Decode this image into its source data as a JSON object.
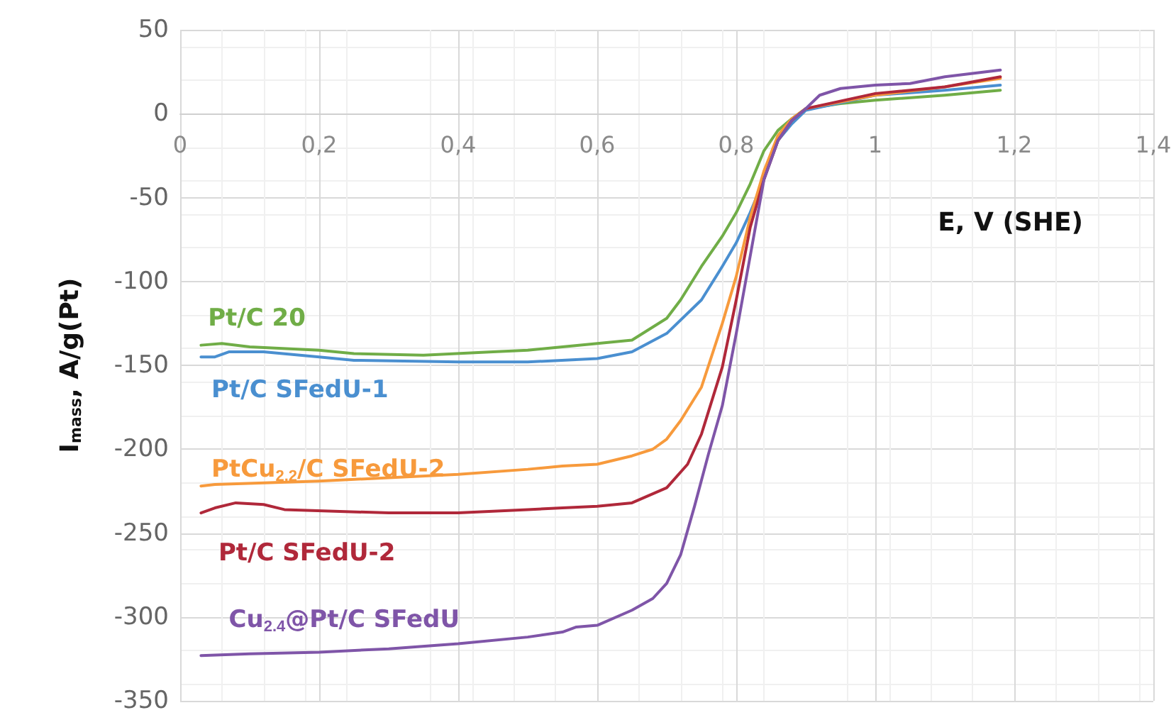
{
  "chart_data": {
    "type": "line",
    "xlabel": "E, V (SHE)",
    "ylabel": "I$_{mass}$, A/g(Pt)",
    "xlim": [
      0,
      1.4
    ],
    "xticks": [
      {
        "value": 0,
        "label": "0"
      },
      {
        "value": 0.2,
        "label": "0,2"
      },
      {
        "value": 0.4,
        "label": "0,4"
      },
      {
        "value": 0.6,
        "label": "0,6"
      },
      {
        "value": 0.8,
        "label": "0,8"
      },
      {
        "value": 1,
        "label": "1"
      },
      {
        "value": 1.2,
        "label": "1,2"
      },
      {
        "value": 1.4,
        "label": "1,4"
      }
    ],
    "ylim": [
      -350,
      50
    ],
    "yticks": [
      -350,
      -300,
      -250,
      -200,
      -150,
      -100,
      -50,
      0,
      50
    ],
    "grid": true,
    "legend": false,
    "marker": "none",
    "line_style": "solid",
    "series": [
      {
        "name": "Pt/C 20",
        "color": "#70ad47",
        "x": [
          0.03,
          0.06,
          0.1,
          0.2,
          0.25,
          0.35,
          0.45,
          0.5,
          0.55,
          0.6,
          0.65,
          0.7,
          0.72,
          0.75,
          0.78,
          0.8,
          0.82,
          0.84,
          0.86,
          0.88,
          0.9,
          0.95,
          1.0,
          1.1,
          1.18
        ],
        "values": [
          -138,
          -137,
          -139,
          -141,
          -143,
          -144,
          -142,
          -141,
          -139,
          -137,
          -135,
          -122,
          -111,
          -91,
          -73,
          -59,
          -42,
          -22,
          -10,
          -3,
          3,
          6,
          8,
          11,
          14
        ]
      },
      {
        "name": "Pt/C SFedU-1",
        "color": "#4a8fd0",
        "x": [
          0.03,
          0.05,
          0.07,
          0.12,
          0.2,
          0.25,
          0.4,
          0.5,
          0.6,
          0.65,
          0.7,
          0.75,
          0.78,
          0.8,
          0.82,
          0.84,
          0.86,
          0.88,
          0.9,
          1.0,
          1.1,
          1.18
        ],
        "values": [
          -145,
          -145,
          -142,
          -142,
          -145,
          -147,
          -148,
          -148,
          -146,
          -142,
          -131,
          -111,
          -91,
          -77,
          -59,
          -39,
          -16,
          -6,
          2,
          11,
          14,
          17
        ]
      },
      {
        "name": "PtCu$_{2.2}$/C SFedU-2",
        "color": "#f79a3c",
        "x": [
          0.03,
          0.05,
          0.2,
          0.3,
          0.4,
          0.5,
          0.55,
          0.6,
          0.65,
          0.68,
          0.7,
          0.72,
          0.75,
          0.78,
          0.8,
          0.82,
          0.84,
          0.86,
          0.88,
          0.9,
          1.0,
          1.1,
          1.18
        ],
        "values": [
          -222,
          -221,
          -219,
          -217,
          -215,
          -212,
          -210,
          -209,
          -204,
          -200,
          -194,
          -183,
          -163,
          -125,
          -97,
          -62,
          -34,
          -13,
          -3,
          3,
          11,
          16,
          21
        ]
      },
      {
        "name": "Pt/C SFedU-2",
        "color": "#b0283a",
        "x": [
          0.03,
          0.05,
          0.08,
          0.12,
          0.15,
          0.3,
          0.4,
          0.5,
          0.55,
          0.6,
          0.65,
          0.7,
          0.73,
          0.75,
          0.78,
          0.8,
          0.82,
          0.84,
          0.86,
          0.88,
          0.9,
          1.0,
          1.1,
          1.18
        ],
        "values": [
          -238,
          -235,
          -232,
          -233,
          -236,
          -238,
          -238,
          -236,
          -235,
          -234,
          -232,
          -223,
          -209,
          -191,
          -151,
          -111,
          -68,
          -39,
          -16,
          -4,
          3,
          12,
          16,
          22
        ]
      },
      {
        "name": "Cu$_{2.4}$@Pt/C SFedU",
        "color": "#7f55a8",
        "x": [
          0.03,
          0.1,
          0.2,
          0.3,
          0.4,
          0.5,
          0.55,
          0.57,
          0.6,
          0.65,
          0.68,
          0.7,
          0.72,
          0.74,
          0.76,
          0.78,
          0.8,
          0.82,
          0.84,
          0.86,
          0.88,
          0.9,
          0.92,
          0.95,
          1.0,
          1.05,
          1.1,
          1.18
        ],
        "values": [
          -323,
          -322,
          -321,
          -319,
          -316,
          -312,
          -309,
          -306,
          -305,
          -296,
          -289,
          -280,
          -263,
          -234,
          -203,
          -174,
          -131,
          -85,
          -39,
          -16,
          -4,
          3,
          11,
          15,
          17,
          18,
          22,
          26
        ]
      }
    ]
  }
}
